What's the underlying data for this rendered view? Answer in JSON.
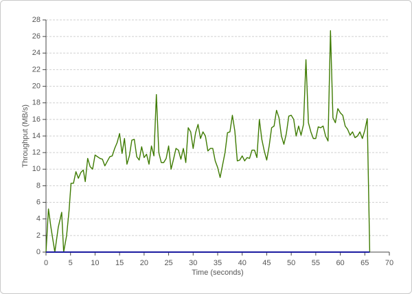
{
  "chart_data": {
    "type": "line",
    "xlabel": "Time (seconds)",
    "ylabel": "Throughput (MB/s)",
    "xlim": [
      0,
      70
    ],
    "xticks": [
      0,
      5,
      10,
      15,
      20,
      25,
      30,
      35,
      40,
      45,
      50,
      55,
      60,
      65,
      70
    ],
    "ylim": [
      0,
      28
    ],
    "yticks": [
      0,
      2,
      4,
      6,
      8,
      10,
      12,
      14,
      16,
      18,
      20,
      22,
      24,
      26,
      28
    ],
    "grid": true,
    "series": [
      {
        "color": "#3d7a00",
        "x": [
          0,
          0.5,
          1,
          1.8,
          2.5,
          3.2,
          3.6,
          4.2,
          4.7,
          5.1,
          5.6,
          6.1,
          6.6,
          7.1,
          7.6,
          8,
          8.5,
          9,
          9.5,
          10,
          11,
          11.5,
          12,
          13,
          13.5,
          14,
          14.5,
          15,
          15.5,
          16,
          16.5,
          17,
          17.5,
          18,
          18.5,
          19,
          19.5,
          20,
          20.5,
          21,
          21.5,
          22,
          22.5,
          23,
          23.5,
          24,
          24.5,
          25,
          25.5,
          26,
          26.5,
          27,
          27.5,
          28,
          28.5,
          29,
          29.5,
          30,
          30.5,
          31,
          31.5,
          32,
          32.5,
          33,
          33.5,
          34,
          34.5,
          35,
          35.5,
          36,
          36.5,
          37,
          37.5,
          38,
          38.5,
          39,
          39.5,
          40,
          40.5,
          41,
          41.5,
          42,
          42.5,
          43,
          43.5,
          44,
          44.5,
          45,
          45.5,
          46,
          46.5,
          47,
          47.5,
          48,
          48.5,
          49,
          49.5,
          50,
          50.5,
          51,
          51.5,
          52,
          52.5,
          53,
          53.5,
          54,
          54.5,
          55,
          55.5,
          56,
          56.5,
          57,
          57.5,
          58,
          58.5,
          59,
          59.5,
          60,
          60.5,
          61,
          61.5,
          62,
          62.5,
          63,
          63.5,
          64,
          64.5,
          65,
          65.5,
          66
        ],
        "values": [
          0,
          5.2,
          3,
          0,
          3,
          4.8,
          0,
          2,
          5,
          8.3,
          8.3,
          9.7,
          8.9,
          9.6,
          9.9,
          8.5,
          11.3,
          10.3,
          10,
          11.7,
          11.3,
          11.2,
          10.4,
          11.5,
          11.6,
          12.5,
          13.2,
          14.3,
          11.9,
          13.7,
          10.6,
          11.6,
          13.5,
          13.6,
          11.5,
          11.1,
          12.7,
          11.4,
          11.8,
          10.6,
          12.8,
          11.6,
          19,
          12,
          10.8,
          10.8,
          11.3,
          12.8,
          10,
          11.2,
          12.5,
          12.3,
          11.2,
          12.5,
          10.8,
          15,
          14.5,
          12.5,
          14.4,
          15.4,
          13.7,
          14.5,
          14,
          12.2,
          12.5,
          12.5,
          11,
          10.2,
          9,
          10.5,
          12,
          14.4,
          14.5,
          16.5,
          14.6,
          11,
          11.1,
          11.6,
          11,
          11.4,
          11.3,
          12.3,
          12.3,
          11.4,
          16,
          13.6,
          12.2,
          11.1,
          12.8,
          15,
          15.2,
          17.1,
          16.2,
          14,
          13,
          14.3,
          16.4,
          16.5,
          16,
          14,
          15.2,
          14.1,
          15.4,
          23.2,
          15.6,
          14.5,
          13.7,
          13.7,
          15.1,
          15,
          15.2,
          14,
          13.4,
          26.7,
          16.2,
          15.6,
          17.3,
          16.8,
          16.5,
          15.2,
          14.8,
          14.1,
          14.5,
          13.8,
          14,
          14.5,
          13.7,
          14.7,
          16.1,
          0
        ]
      },
      {
        "color": "#1a1aa0",
        "x": [
          0,
          66
        ],
        "values": [
          0,
          0
        ]
      }
    ]
  }
}
